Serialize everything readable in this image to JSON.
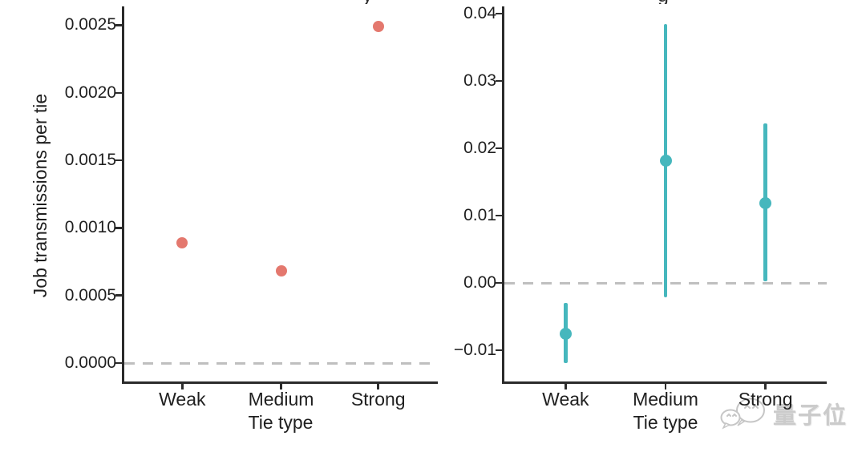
{
  "figure": {
    "ylabel": "Job transmissions per tie",
    "watermark": {
      "text": "量子位",
      "icon": "wechat-chat-bubbles"
    },
    "title_fragments": [
      "y",
      "g"
    ],
    "colors": {
      "left_points": "#E4786E",
      "right_points": "#46B7BD",
      "axis": "#2B2B2B",
      "dashed_reference": "#BFBFBF",
      "text": "#1F1F1F",
      "watermark": "#C8C8C8"
    }
  },
  "chart_data": [
    {
      "type": "scatter",
      "panel": "left",
      "categories": [
        "Weak",
        "Medium",
        "Strong"
      ],
      "values": [
        0.00089,
        0.00068,
        0.00249
      ],
      "xlabel": "Tie type",
      "ylabel": "Job transmissions per tie",
      "yticks": [
        "0.0000",
        "0.0005",
        "0.0010",
        "0.0015",
        "0.0020",
        "0.0025"
      ],
      "ylim": [
        -0.000136,
        0.002639
      ],
      "reference_line_y": 0,
      "reference_line_style": "dashed",
      "point_color": "#E4786E",
      "grid": false,
      "legend": "none"
    },
    {
      "type": "scatter",
      "panel": "right",
      "categories": [
        "Weak",
        "Medium",
        "Strong"
      ],
      "values": [
        -0.0075,
        0.0181,
        0.0119
      ],
      "error_low": [
        -0.0119,
        -0.0021,
        0.0002
      ],
      "error_high": [
        -0.003,
        0.0385,
        0.0237
      ],
      "xlabel": "Tie type",
      "ylabel": "",
      "yticks": [
        "−0.01",
        "0.00",
        "0.01",
        "0.02",
        "0.03",
        "0.04"
      ],
      "ylim": [
        -0.01464,
        0.04107
      ],
      "reference_line_y": 0,
      "reference_line_style": "dashed",
      "point_color": "#46B7BD",
      "grid": false,
      "legend": "none"
    }
  ]
}
